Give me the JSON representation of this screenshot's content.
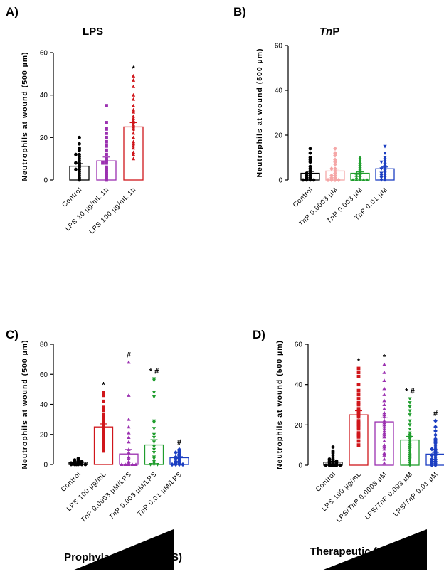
{
  "chart_data": [
    {
      "type": "bar",
      "panel": "A)",
      "title": "LPS",
      "ylabel": "Neutrophils at wound (500 µm)",
      "ylim": [
        0,
        60
      ],
      "yticks": [
        0,
        20,
        40,
        60
      ],
      "categories": [
        "Control",
        "LPS 10 µg/mL 1h",
        "LPS 100 µg/mL 1h"
      ],
      "colors": [
        "#000000",
        "#9b30b0",
        "#d0161b"
      ],
      "markers": [
        "circle",
        "square",
        "triangle"
      ],
      "means": [
        6.5,
        9,
        25
      ],
      "sem": [
        1.2,
        1.8,
        2
      ],
      "annotations": [
        "",
        "",
        "*"
      ],
      "points": [
        [
          20,
          17,
          15,
          14,
          12,
          12,
          11,
          10,
          9,
          8,
          8,
          7,
          6,
          5,
          5,
          4,
          3,
          2,
          1,
          0
        ],
        [
          35,
          27,
          24,
          22,
          20,
          18,
          16,
          14,
          12,
          10,
          9,
          8,
          8,
          6,
          5,
          4,
          3,
          2,
          1,
          0
        ],
        [
          49,
          47,
          44,
          40,
          38,
          35,
          33,
          32,
          30,
          29,
          28,
          27,
          26,
          25,
          24,
          22,
          20,
          18,
          17,
          16,
          15,
          13,
          12,
          10
        ]
      ]
    },
    {
      "type": "bar",
      "panel": "B)",
      "title": "TnP",
      "ylabel": "Neutrophils at wound (500 µm)",
      "ylim": [
        0,
        60
      ],
      "yticks": [
        0,
        20,
        40,
        60
      ],
      "categories": [
        "Control",
        "TnP 0.0003 µM",
        "TnP 0.003 µM",
        "TnP 0.01 µM"
      ],
      "colors": [
        "#000000",
        "#f5a7a7",
        "#1f9d2d",
        "#1c3fc2"
      ],
      "markers": [
        "circle",
        "diamond",
        "triangle",
        "triangle-down"
      ],
      "means": [
        3,
        4,
        3,
        5
      ],
      "sem": [
        0.8,
        0.9,
        0.6,
        0.8
      ],
      "annotations": [
        "",
        "",
        "",
        ""
      ],
      "points": [
        [
          14,
          12,
          10,
          9,
          8,
          6,
          5,
          4,
          3,
          3,
          2,
          2,
          1,
          1,
          0,
          0,
          0,
          0
        ],
        [
          14,
          12,
          11,
          9,
          8,
          7,
          5,
          5,
          4,
          3,
          2,
          2,
          1,
          1,
          0,
          0,
          0,
          0
        ],
        [
          10,
          9,
          8,
          7,
          6,
          5,
          4,
          3,
          3,
          2,
          2,
          1,
          1,
          0,
          0,
          0,
          0,
          0
        ],
        [
          15,
          12,
          10,
          9,
          8,
          8,
          7,
          6,
          5,
          5,
          4,
          3,
          3,
          2,
          2,
          1,
          1,
          0,
          0
        ]
      ]
    },
    {
      "type": "bar",
      "panel": "C)",
      "title": "",
      "ylabel": "Neutrophils at wound (500 µm)",
      "ylim": [
        0,
        80
      ],
      "yticks": [
        0,
        20,
        40,
        60,
        80
      ],
      "categories": [
        "Control",
        "LPS 100 µg/mL",
        "TnP 0.0003 µM/LPS",
        "TnP 0.003 µM/LPS",
        "TnP 0.01 µM/LPS"
      ],
      "colors": [
        "#000000",
        "#d0161b",
        "#9b30b0",
        "#1f9d2d",
        "#1c3fc2"
      ],
      "markers": [
        "circle",
        "square",
        "triangle",
        "triangle-down",
        "diamond"
      ],
      "means": [
        1.5,
        25,
        7,
        13,
        4.5
      ],
      "sem": [
        0.4,
        2,
        3,
        3.5,
        0.7
      ],
      "annotations": [
        "",
        "*",
        "#",
        "* #",
        "#"
      ],
      "points": [
        [
          4,
          3,
          3,
          2,
          2,
          2,
          1,
          1,
          1,
          1,
          0,
          0,
          0,
          0,
          0,
          0
        ],
        [
          48,
          46,
          42,
          38,
          36,
          33,
          31,
          30,
          28,
          27,
          26,
          25,
          24,
          23,
          22,
          21,
          20,
          19,
          18,
          17,
          16,
          15,
          14,
          12,
          10,
          9
        ],
        [
          68,
          46,
          30,
          25,
          21,
          18,
          15,
          10,
          8,
          5,
          4,
          2,
          1,
          0,
          0,
          0,
          0,
          0,
          0
        ],
        [
          57,
          56,
          48,
          45,
          29,
          28,
          24,
          20,
          18,
          15,
          12,
          10,
          8,
          5,
          4,
          2,
          1,
          0,
          0,
          0
        ],
        [
          10,
          9,
          8,
          8,
          7,
          6,
          5,
          5,
          4,
          4,
          3,
          2,
          2,
          1,
          1,
          0,
          0,
          0,
          0
        ]
      ],
      "footer": "Prophylactic (TnP/LPS)"
    },
    {
      "type": "bar",
      "panel": "D)",
      "title": "",
      "ylabel": "Neutrophils at wound (500 µm)",
      "ylim": [
        0,
        60
      ],
      "yticks": [
        0,
        20,
        40,
        60
      ],
      "categories": [
        "Control",
        "LPS 100 µg/mL",
        "LPS/TnP 0.0003 µM",
        "LPS/TnP 0.003 µM",
        "LPS/TnP 0.01 µM"
      ],
      "colors": [
        "#000000",
        "#d0161b",
        "#9b30b0",
        "#1f9d2d",
        "#1c3fc2"
      ],
      "markers": [
        "circle",
        "square",
        "triangle",
        "triangle-down",
        "diamond"
      ],
      "means": [
        1.5,
        25,
        21.5,
        12.5,
        5.5
      ],
      "sem": [
        0.4,
        2,
        2,
        1.8,
        0.9
      ],
      "annotations": [
        "",
        "*",
        "*",
        "* #",
        "#"
      ],
      "points": [
        [
          9,
          7,
          6,
          5,
          4,
          3,
          3,
          2,
          2,
          2,
          1,
          1,
          1,
          0,
          0,
          0,
          0,
          0,
          0,
          0
        ],
        [
          48,
          46,
          44,
          40,
          37,
          35,
          33,
          31,
          30,
          28,
          27,
          26,
          25,
          24,
          22,
          21,
          20,
          19,
          18,
          16,
          15,
          14,
          12,
          10
        ],
        [
          50,
          46,
          42,
          38,
          35,
          32,
          30,
          28,
          26,
          25,
          24,
          22,
          21,
          20,
          19,
          18,
          17,
          16,
          15,
          14,
          12,
          10,
          9,
          8,
          6,
          5,
          3,
          1
        ],
        [
          33,
          31,
          29,
          27,
          25,
          22,
          20,
          18,
          16,
          15,
          14,
          13,
          12,
          11,
          10,
          9,
          8,
          7,
          6,
          5,
          4,
          3,
          2,
          1,
          0
        ],
        [
          22,
          19,
          17,
          15,
          13,
          12,
          11,
          10,
          9,
          8,
          8,
          7,
          6,
          5,
          5,
          4,
          3,
          3,
          2,
          2,
          1,
          1,
          0,
          0
        ]
      ],
      "footer": "Therapeutic (LPS/TnP)"
    }
  ]
}
